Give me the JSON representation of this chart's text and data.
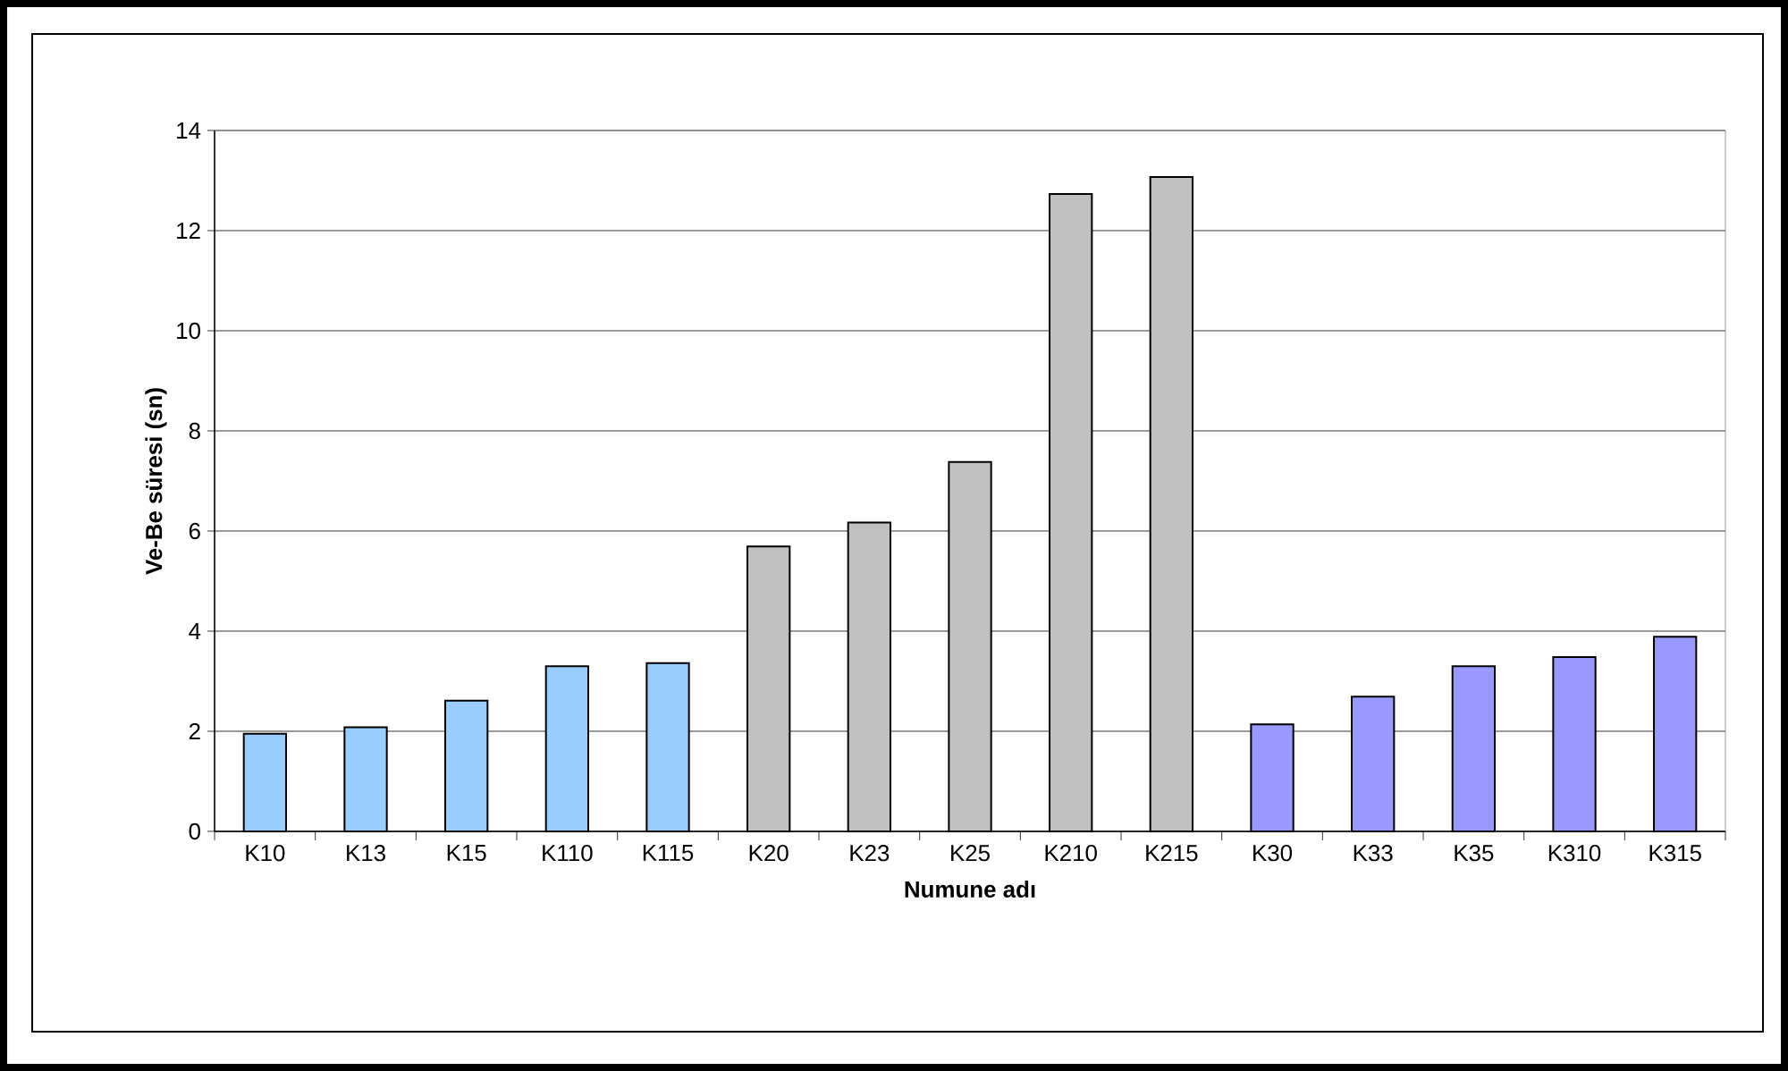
{
  "chart_data": {
    "type": "bar",
    "xlabel": "Numune adı",
    "ylabel": "Ve-Be süresi (sn)",
    "categories": [
      "K10",
      "K13",
      "K15",
      "K110",
      "K115",
      "K20",
      "K23",
      "K25",
      "K210",
      "K215",
      "K30",
      "K33",
      "K35",
      "K310",
      "K315"
    ],
    "values": [
      1.95,
      2.08,
      2.61,
      3.3,
      3.36,
      5.69,
      6.17,
      7.38,
      12.73,
      13.07,
      2.14,
      2.69,
      3.3,
      3.48,
      3.89
    ],
    "colors": [
      "#99ccff",
      "#99ccff",
      "#99ccff",
      "#99ccff",
      "#99ccff",
      "#c0c0c0",
      "#c0c0c0",
      "#c0c0c0",
      "#c0c0c0",
      "#c0c0c0",
      "#9999ff",
      "#9999ff",
      "#9999ff",
      "#9999ff",
      "#9999ff"
    ],
    "ylim": [
      0,
      14
    ],
    "yticks": [
      0,
      2,
      4,
      6,
      8,
      10,
      12,
      14
    ],
    "grid": "y"
  }
}
